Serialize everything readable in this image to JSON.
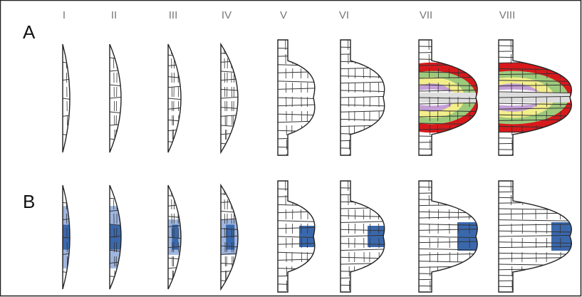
{
  "columns": [
    "I",
    "II",
    "III",
    "IV",
    "V",
    "VI",
    "VII",
    "VIII"
  ],
  "rows": [
    "A",
    "B"
  ]
}
